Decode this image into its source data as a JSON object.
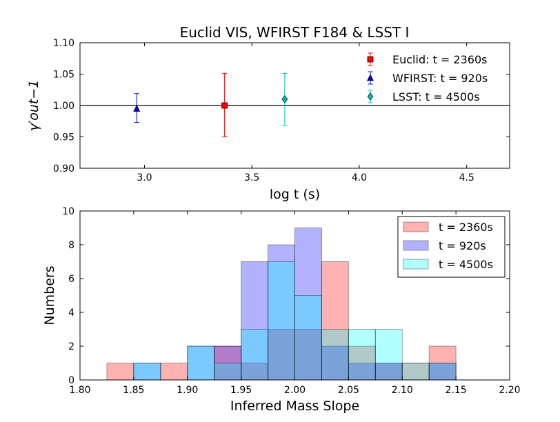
{
  "figure": {
    "title": "Euclid VIS, WFIRST F184 & LSST I"
  },
  "chart_data": [
    {
      "type": "scatter",
      "title": "Euclid VIS, WFIRST F184 & LSST I",
      "xlabel": "log t (s)",
      "ylabel": "γ′out−1",
      "xlim": [
        2.7,
        4.7
      ],
      "ylim": [
        0.9,
        1.1
      ],
      "xticks": [
        "3.0",
        "3.5",
        "4.0",
        "4.5"
      ],
      "xtick_values": [
        3.0,
        3.5,
        4.0,
        4.5
      ],
      "yticks": [
        "0.90",
        "0.95",
        "1.00",
        "1.05",
        "1.10"
      ],
      "ytick_values": [
        0.9,
        0.95,
        1.0,
        1.05,
        1.1
      ],
      "reference_line": 1.0,
      "legend_position": "top-right",
      "grid": false,
      "series": [
        {
          "name": "Euclid: t = 2360s",
          "marker": "square",
          "color": "#ff0000",
          "errcolor": "#ff0000",
          "x": 3.373,
          "y": 1.0,
          "err_low": 0.05,
          "err_high": 0.051
        },
        {
          "name": "WFIRST: t = 920s",
          "marker": "triangle",
          "color": "#0000cc",
          "errcolor": "#0000ff",
          "x": 2.964,
          "y": 0.995,
          "err_low": 0.022,
          "err_high": 0.024
        },
        {
          "name": "LSST: t = 4500s",
          "marker": "diamond",
          "color": "#00b4b4",
          "errcolor": "#00bfbf",
          "x": 3.653,
          "y": 1.01,
          "err_low": 0.042,
          "err_high": 0.041
        }
      ]
    },
    {
      "type": "bar",
      "subtype": "histogram",
      "xlabel": "Inferred Mass Slope",
      "ylabel": "Numbers",
      "xlim": [
        1.8,
        2.2
      ],
      "ylim": [
        0,
        10
      ],
      "xticks": [
        "1.80",
        "1.85",
        "1.90",
        "1.95",
        "2.00",
        "2.05",
        "2.10",
        "2.15",
        "2.20"
      ],
      "xtick_values": [
        1.8,
        1.85,
        1.9,
        1.95,
        2.0,
        2.05,
        2.1,
        2.15,
        2.2
      ],
      "yticks": [
        "0",
        "2",
        "4",
        "6",
        "8",
        "10"
      ],
      "ytick_values": [
        0,
        2,
        4,
        6,
        8,
        10
      ],
      "bin_edges": [
        1.825,
        1.85,
        1.875,
        1.9,
        1.925,
        1.95,
        1.975,
        2.0,
        2.025,
        2.05,
        2.075,
        2.1,
        2.125,
        2.15
      ],
      "legend_position": "top-right",
      "grid": false,
      "series": [
        {
          "name": "t = 2360s",
          "color": "#ff0000",
          "alpha": 0.3,
          "counts": [
            1,
            0,
            1,
            0,
            2,
            1,
            3,
            3,
            7,
            2,
            1,
            1,
            2
          ]
        },
        {
          "name": "t = 920s",
          "color": "#0000ff",
          "alpha": 0.3,
          "counts": [
            0,
            1,
            0,
            2,
            2,
            7,
            8,
            9,
            2,
            1,
            1,
            0,
            1
          ]
        },
        {
          "name": "t = 4500s",
          "color": "#00ffff",
          "alpha": 0.3,
          "counts": [
            0,
            1,
            0,
            2,
            1,
            3,
            7,
            5,
            3,
            3,
            3,
            1,
            1
          ]
        }
      ]
    }
  ]
}
